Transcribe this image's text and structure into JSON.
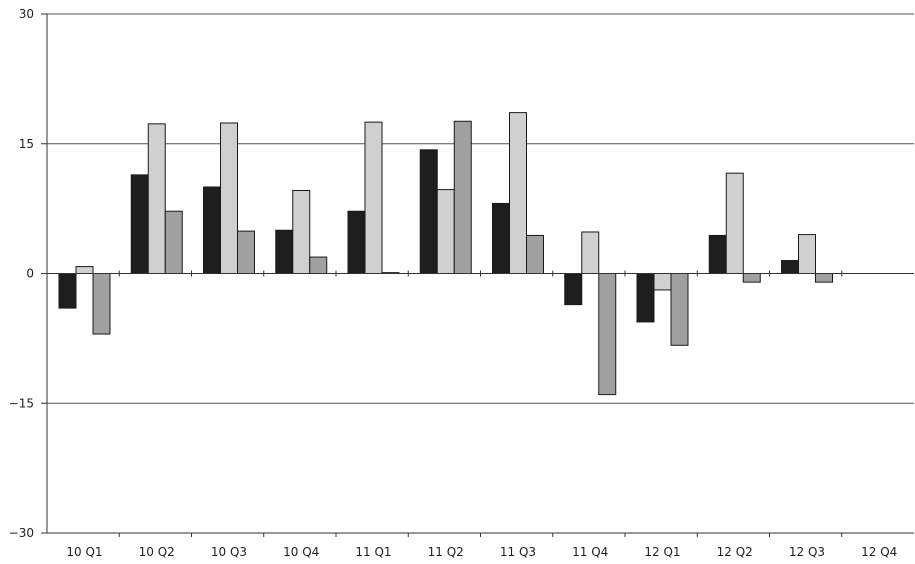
{
  "chart_data": {
    "type": "bar",
    "title": "",
    "xlabel": "",
    "ylabel": "",
    "ylim": [
      -30,
      30
    ],
    "yticks": [
      30,
      15,
      0,
      -15,
      -30
    ],
    "ytick_labels": [
      "30",
      "15",
      "0",
      "−15",
      "−30"
    ],
    "grid": true,
    "legend": "none",
    "categories": [
      "10 Q1",
      "10 Q2",
      "10 Q3",
      "10 Q4",
      "11 Q1",
      "11 Q2",
      "11 Q3",
      "11 Q4",
      "12 Q1",
      "12 Q2",
      "12 Q3",
      "12 Q4"
    ],
    "series": [
      {
        "color": "#1e1e1e",
        "values": [
          -4.0,
          11.4,
          10.0,
          5.0,
          7.2,
          14.3,
          8.1,
          -3.6,
          -5.6,
          4.4,
          1.5,
          null
        ]
      },
      {
        "color": "#d0d0d0",
        "values": [
          0.8,
          17.3,
          17.4,
          9.6,
          17.5,
          9.7,
          18.6,
          4.8,
          -1.9,
          11.6,
          4.5,
          null
        ]
      },
      {
        "color": "#a0a0a0",
        "values": [
          -7.0,
          7.2,
          4.9,
          1.9,
          0.1,
          17.6,
          4.4,
          -14.0,
          -8.3,
          -1.0,
          -1.0,
          null
        ]
      }
    ]
  }
}
